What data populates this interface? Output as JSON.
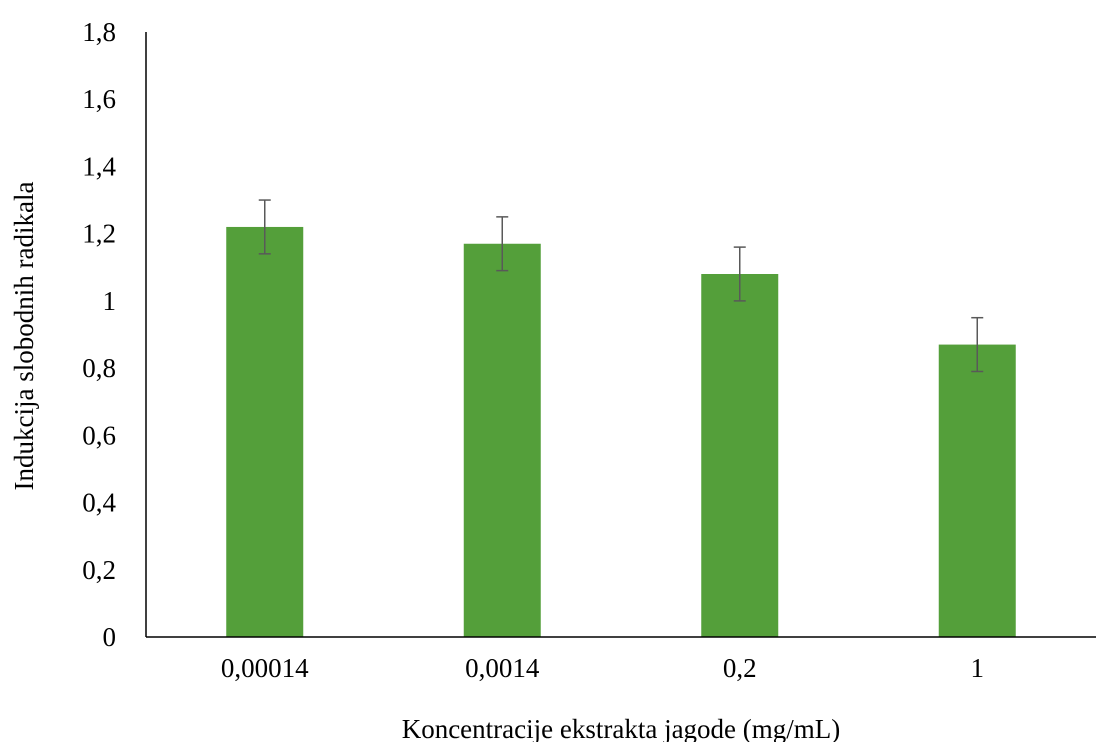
{
  "chart_data": {
    "type": "bar",
    "categories": [
      "0,00014",
      "0,0014",
      "0,2",
      "1"
    ],
    "values": [
      1.22,
      1.17,
      1.08,
      0.87
    ],
    "error": [
      0.08,
      0.08,
      0.08,
      0.08
    ],
    "xlabel": "Koncentracije ekstrakta jagode (mg/mL)",
    "ylabel": "Indukcija slobodnih radikala",
    "ylim": [
      0,
      1.8
    ],
    "yticks": [
      0,
      0.2,
      0.4,
      0.6,
      0.8,
      1,
      1.2,
      1.4,
      1.6,
      1.8
    ],
    "ytick_labels": [
      "0",
      "0,2",
      "0,4",
      "0,6",
      "0,8",
      "1",
      "1,2",
      "1,4",
      "1,6",
      "1,8"
    ],
    "grid": false,
    "legend": false,
    "colors": {
      "bar": "#549f3a",
      "error_bar": "#595959",
      "axis": "#000000"
    }
  }
}
